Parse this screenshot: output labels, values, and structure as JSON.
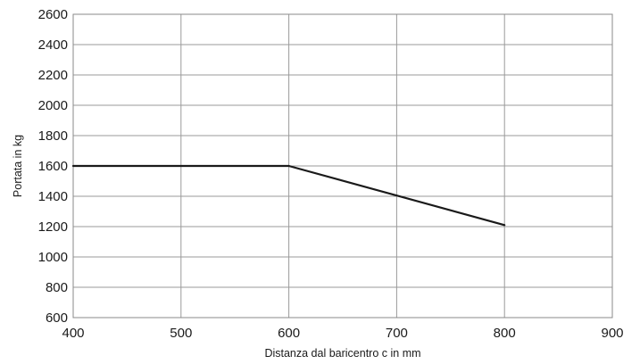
{
  "chart_data": {
    "type": "line",
    "title": "",
    "xlabel": "Distanza dal baricentro c in mm",
    "ylabel": "Portata in kg",
    "xlim": [
      400,
      900
    ],
    "ylim": [
      600,
      2600
    ],
    "xticks": [
      400,
      500,
      600,
      700,
      800,
      900
    ],
    "yticks": [
      600,
      800,
      1000,
      1200,
      1400,
      1600,
      1800,
      2000,
      2200,
      2400,
      2600
    ],
    "grid": true,
    "legend": "none",
    "series": [
      {
        "color": "#1a1a1a",
        "x": [
          400,
          600,
          800
        ],
        "y": [
          1600,
          1600,
          1210
        ]
      }
    ]
  }
}
